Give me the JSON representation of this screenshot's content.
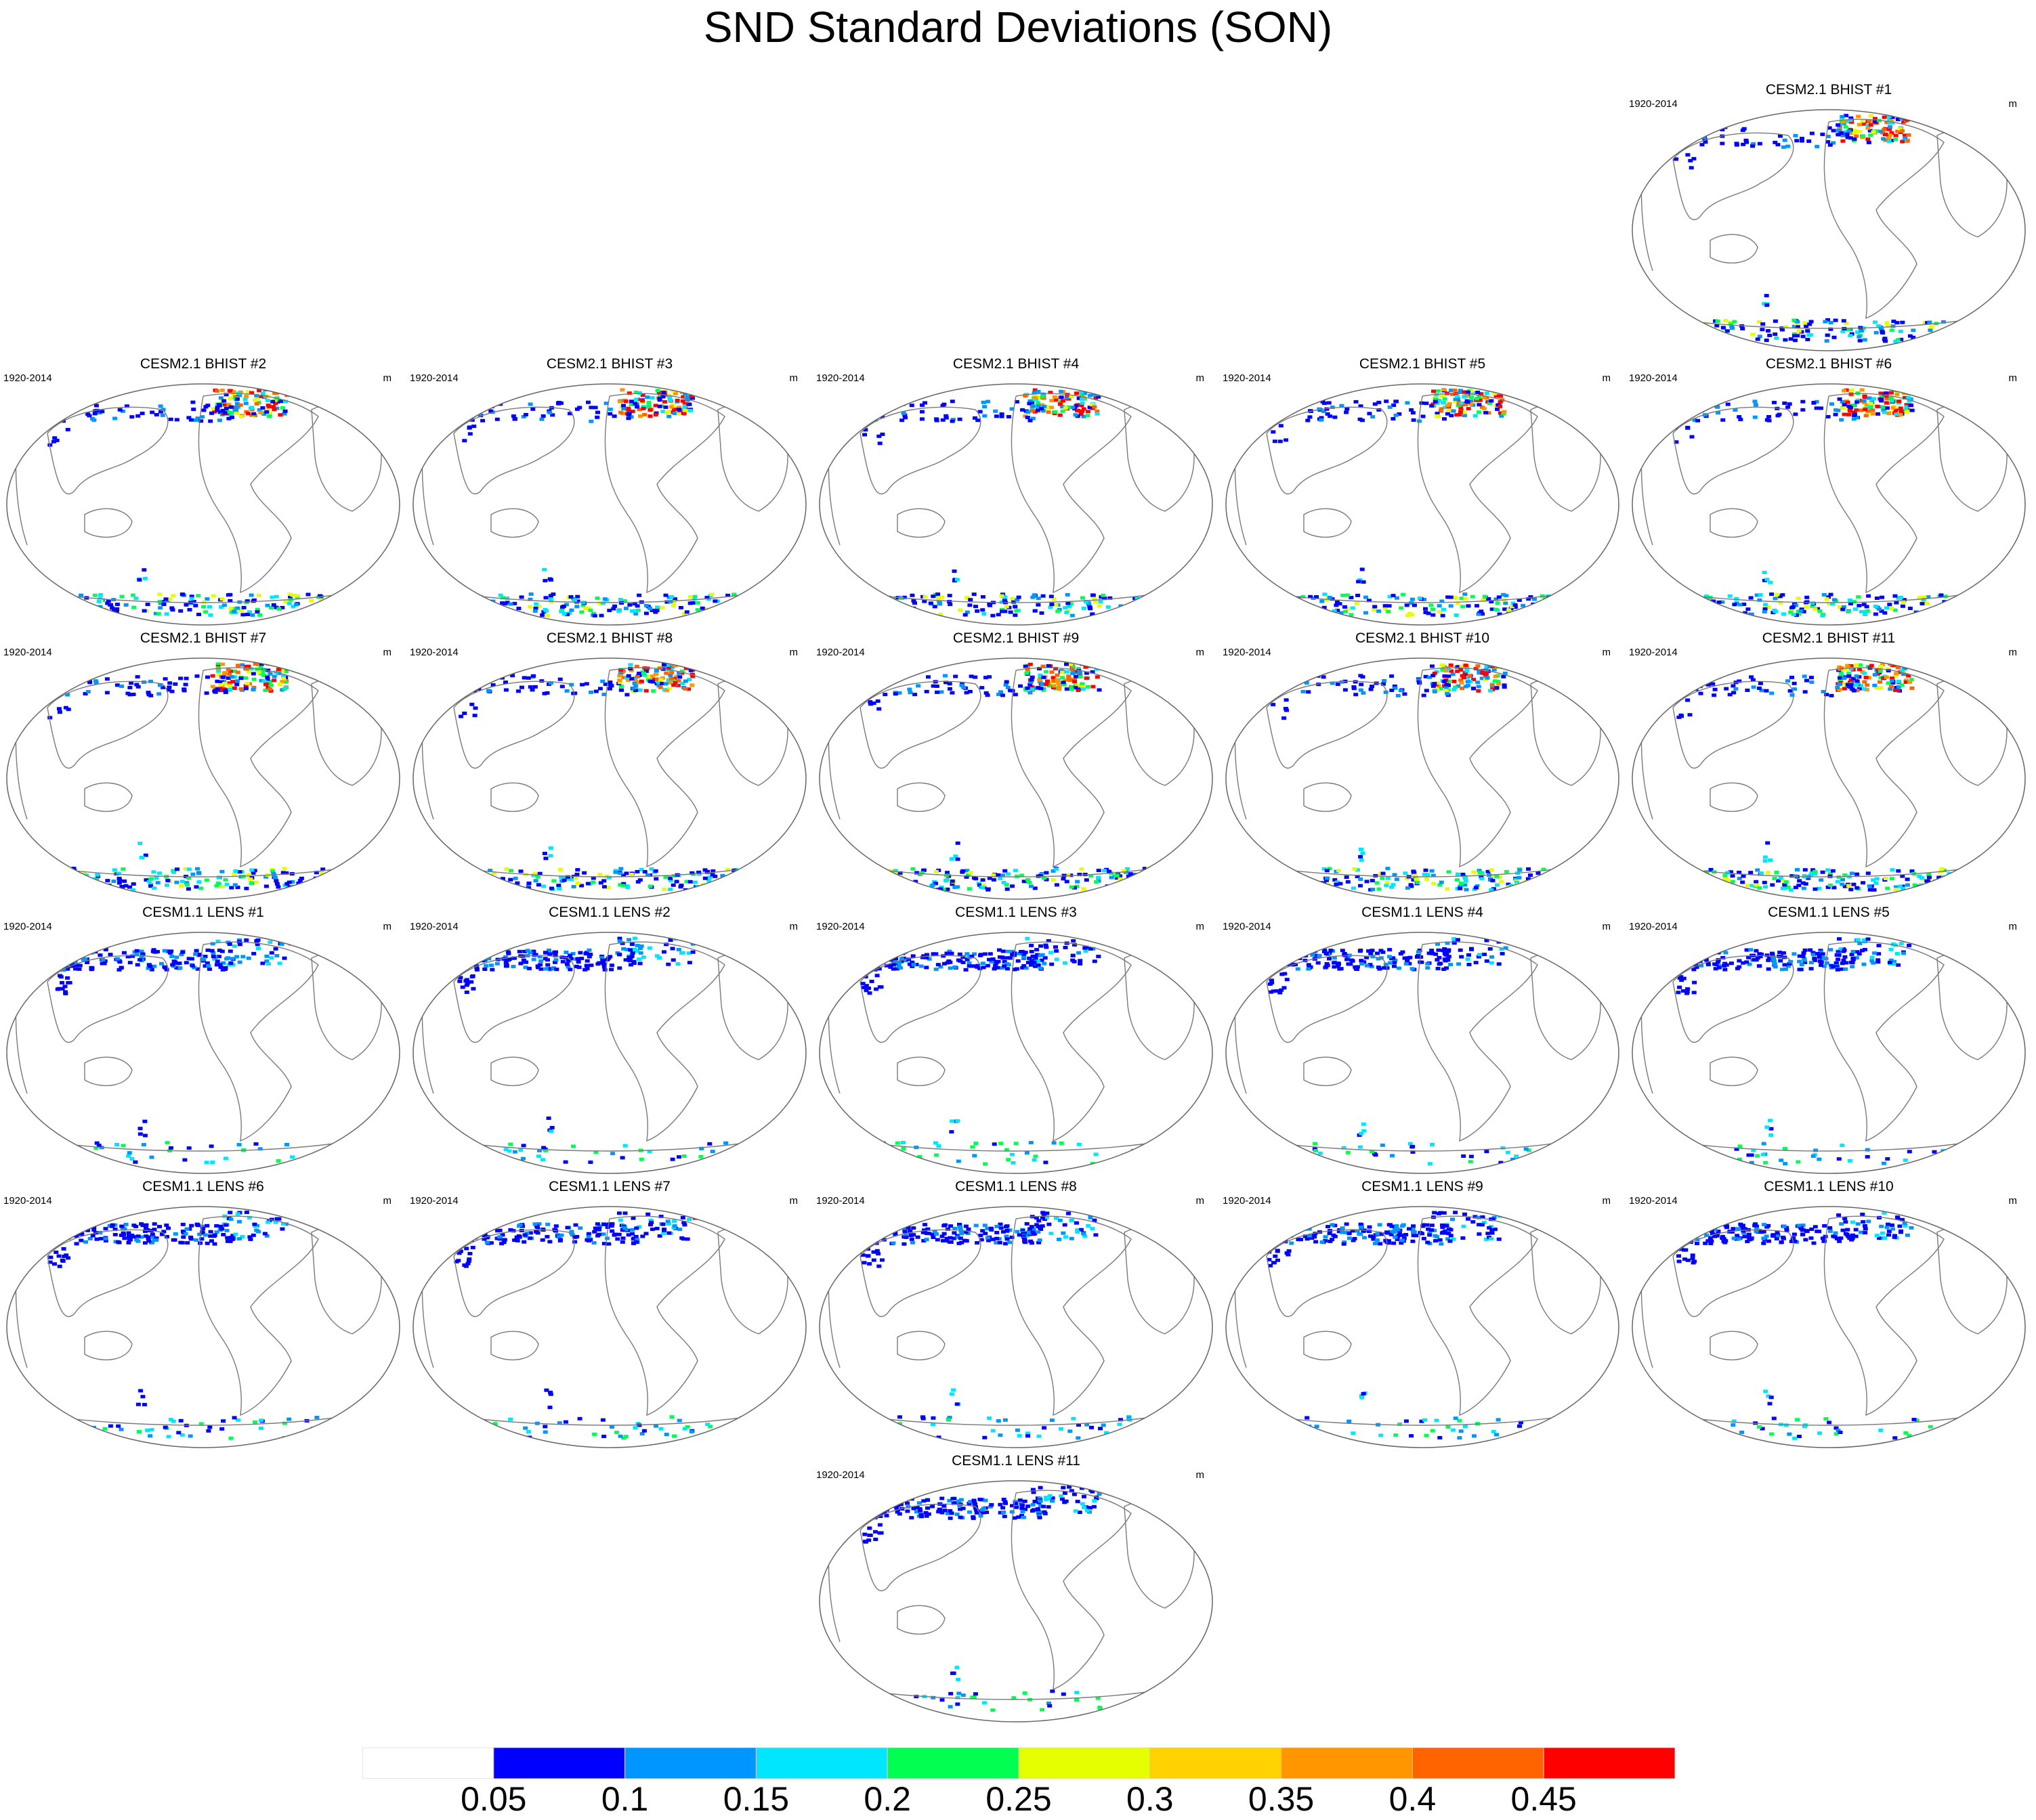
{
  "title": "SND Standard Deviations (SON)",
  "panels": [
    {
      "id": "bhist-1",
      "title": "CESM2.1 BHIST #1",
      "period": "1920-2014",
      "units": "m"
    },
    {
      "id": "bhist-2",
      "title": "CESM2.1 BHIST #2",
      "period": "1920-2014",
      "units": "m"
    },
    {
      "id": "bhist-3",
      "title": "CESM2.1 BHIST #3",
      "period": "1920-2014",
      "units": "m"
    },
    {
      "id": "bhist-4",
      "title": "CESM2.1 BHIST #4",
      "period": "1920-2014",
      "units": "m"
    },
    {
      "id": "bhist-5",
      "title": "CESM2.1 BHIST #5",
      "period": "1920-2014",
      "units": "m"
    },
    {
      "id": "bhist-6",
      "title": "CESM2.1 BHIST #6",
      "period": "1920-2014",
      "units": "m"
    },
    {
      "id": "bhist-7",
      "title": "CESM2.1 BHIST #7",
      "period": "1920-2014",
      "units": "m"
    },
    {
      "id": "bhist-8",
      "title": "CESM2.1 BHIST #8",
      "period": "1920-2014",
      "units": "m"
    },
    {
      "id": "bhist-9",
      "title": "CESM2.1 BHIST #9",
      "period": "1920-2014",
      "units": "m"
    },
    {
      "id": "bhist-10",
      "title": "CESM2.1 BHIST #10",
      "period": "1920-2014",
      "units": "m"
    },
    {
      "id": "bhist-11",
      "title": "CESM2.1 BHIST #11",
      "period": "1920-2014",
      "units": "m"
    },
    {
      "id": "lens-1",
      "title": "CESM1.1 LENS #1",
      "period": "1920-2014",
      "units": "m"
    },
    {
      "id": "lens-2",
      "title": "CESM1.1 LENS #2",
      "period": "1920-2014",
      "units": "m"
    },
    {
      "id": "lens-3",
      "title": "CESM1.1 LENS #3",
      "period": "1920-2014",
      "units": "m"
    },
    {
      "id": "lens-4",
      "title": "CESM1.1 LENS #4",
      "period": "1920-2014",
      "units": "m"
    },
    {
      "id": "lens-5",
      "title": "CESM1.1 LENS #5",
      "period": "1920-2014",
      "units": "m"
    },
    {
      "id": "lens-6",
      "title": "CESM1.1 LENS #6",
      "period": "1920-2014",
      "units": "m"
    },
    {
      "id": "lens-7",
      "title": "CESM1.1 LENS #7",
      "period": "1920-2014",
      "units": "m"
    },
    {
      "id": "lens-8",
      "title": "CESM1.1 LENS #8",
      "period": "1920-2014",
      "units": "m"
    },
    {
      "id": "lens-9",
      "title": "CESM1.1 LENS #9",
      "period": "1920-2014",
      "units": "m"
    },
    {
      "id": "lens-10",
      "title": "CESM1.1 LENS #10",
      "period": "1920-2014",
      "units": "m"
    },
    {
      "id": "lens-11",
      "title": "CESM1.1 LENS #11",
      "period": "1920-2014",
      "units": "m"
    }
  ],
  "colorbar": {
    "colors": [
      "#ffffff",
      "#0000ff",
      "#0096ff",
      "#00e6ff",
      "#00ff50",
      "#e6ff00",
      "#ffd200",
      "#ff9600",
      "#ff6400",
      "#ff0000"
    ],
    "labels": [
      "0.05",
      "0.1",
      "0.15",
      "0.2",
      "0.25",
      "0.3",
      "0.35",
      "0.4",
      "0.45"
    ]
  }
}
